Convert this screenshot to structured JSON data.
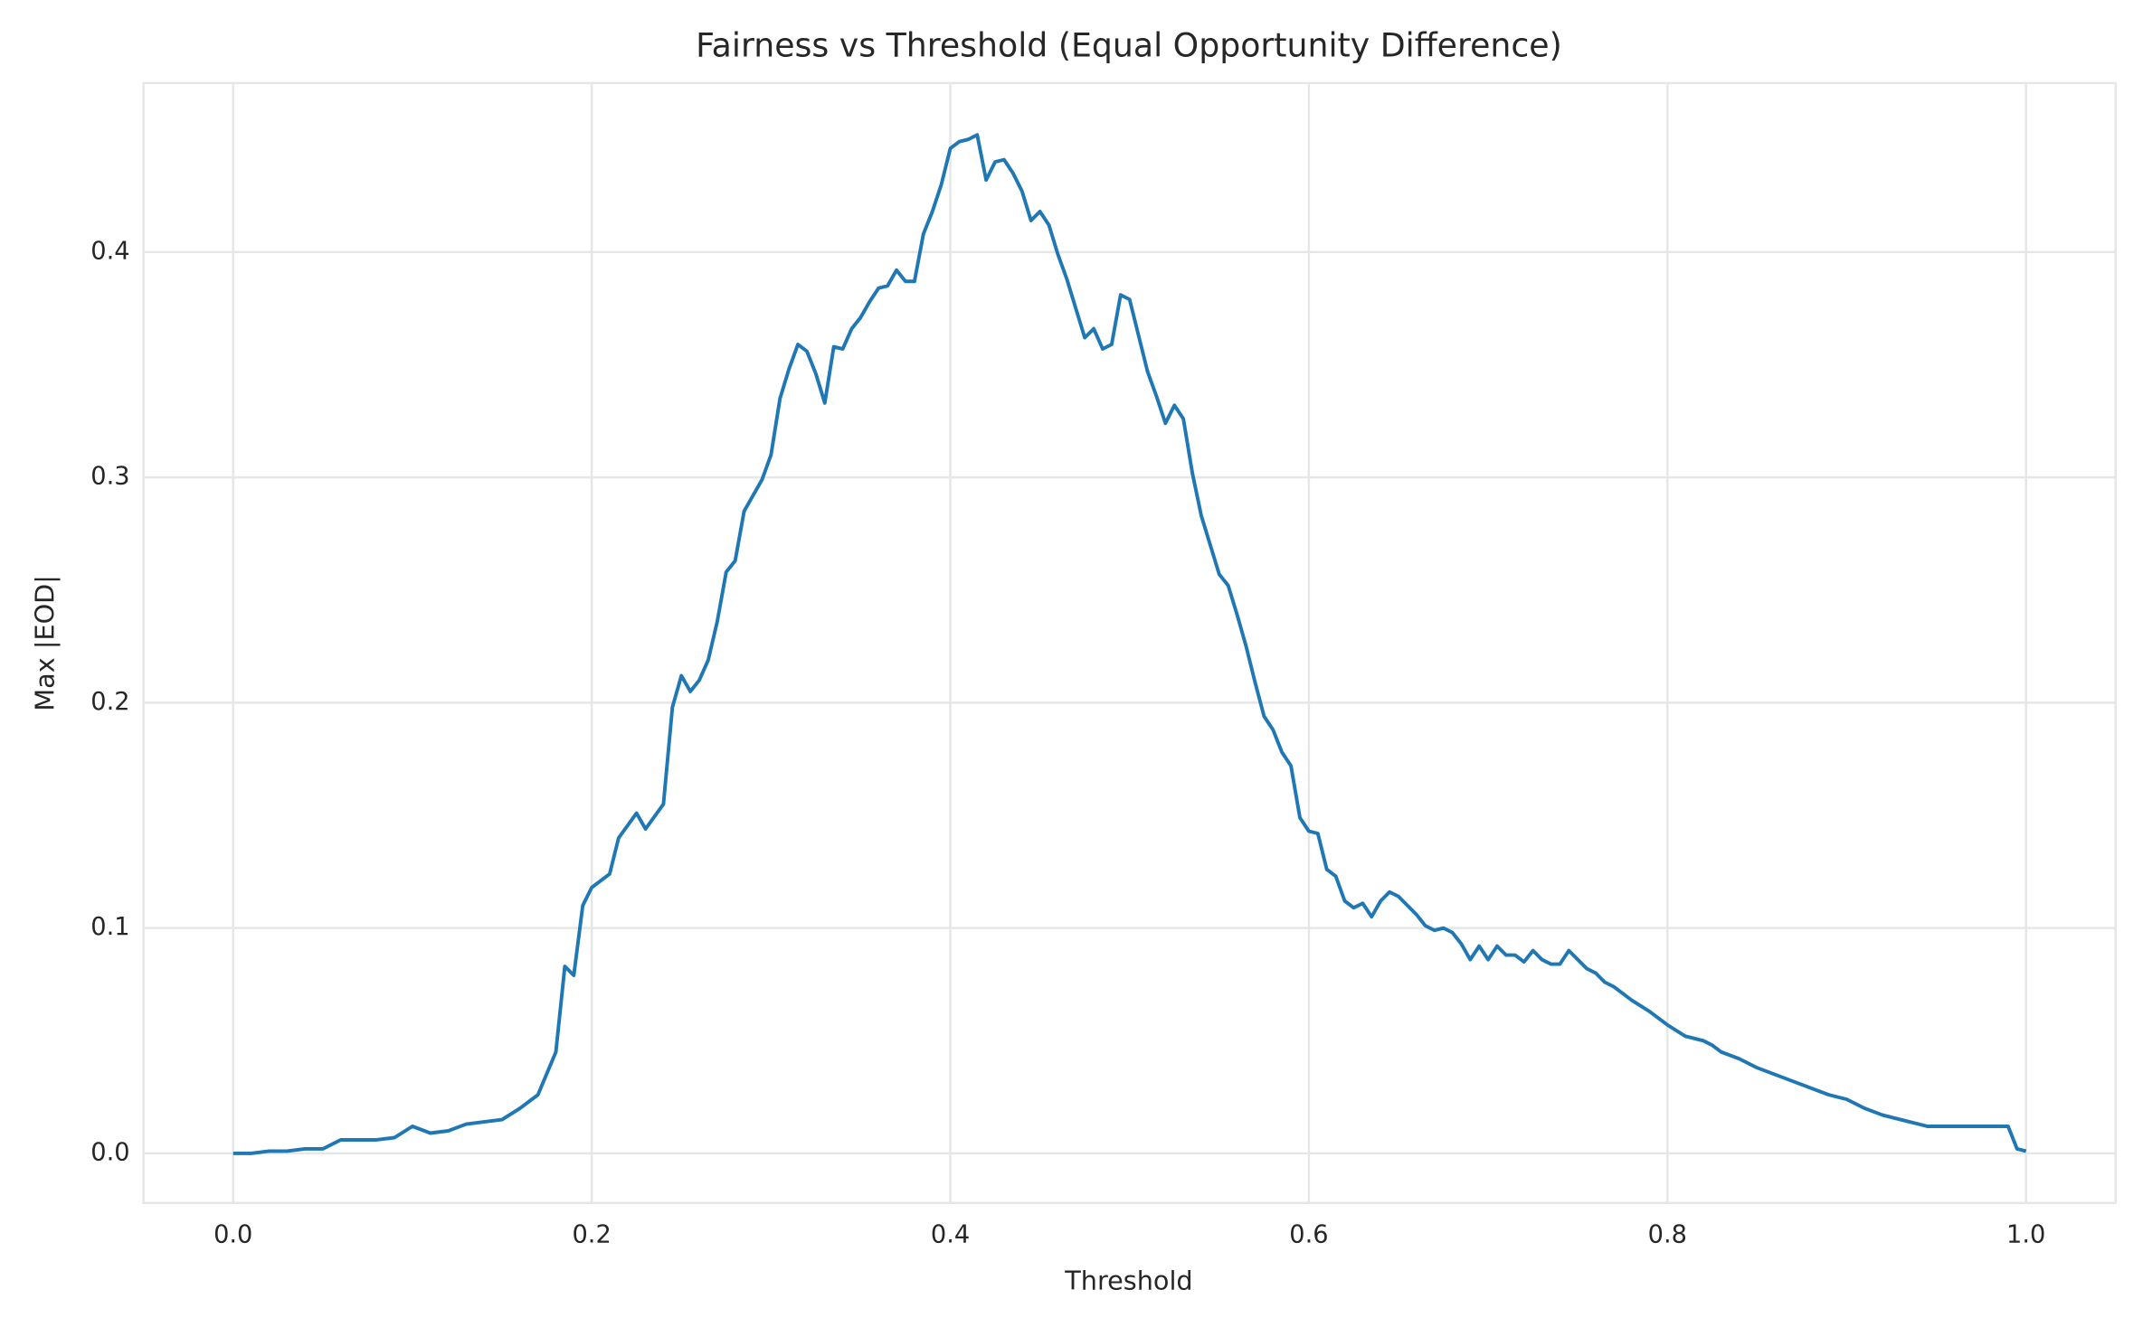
{
  "chart_data": {
    "type": "line",
    "title": "Fairness vs Threshold (Equal Opportunity Difference)",
    "x_label": "Threshold",
    "y_label": "Max |EOD|",
    "xlim": [
      -0.05,
      1.05
    ],
    "ylim": [
      -0.022,
      0.475
    ],
    "xticks": [
      {
        "value": 0,
        "label": "0.0"
      },
      0.2,
      0.4,
      0.6,
      0.8,
      {
        "value": 1,
        "label": "1.0"
      }
    ],
    "yticks": [
      {
        "value": 0,
        "label": "0.0"
      },
      0.1,
      0.2,
      0.3,
      0.4
    ],
    "grid": true,
    "x": [
      0,
      0.01,
      0.02,
      0.03,
      0.04,
      0.05,
      0.06,
      0.07,
      0.08,
      0.09,
      0.1,
      0.11,
      0.12,
      0.13,
      0.14,
      0.15,
      0.16,
      0.17,
      0.18,
      0.185,
      0.19,
      0.195,
      0.2,
      0.21,
      0.215,
      0.225,
      0.23,
      0.24,
      0.245,
      0.25,
      0.255,
      0.26,
      0.265,
      0.27,
      0.275,
      0.28,
      0.285,
      0.29,
      0.295,
      0.3,
      0.305,
      0.31,
      0.315,
      0.32,
      0.325,
      0.33,
      0.335,
      0.34,
      0.345,
      0.35,
      0.355,
      0.36,
      0.365,
      0.37,
      0.375,
      0.38,
      0.385,
      0.39,
      0.395,
      0.4,
      0.405,
      0.41,
      0.415,
      0.42,
      0.425,
      0.43,
      0.435,
      0.44,
      0.445,
      0.45,
      0.455,
      0.46,
      0.465,
      0.47,
      0.475,
      0.48,
      0.485,
      0.49,
      0.495,
      0.5,
      0.505,
      0.51,
      0.515,
      0.52,
      0.525,
      0.53,
      0.535,
      0.54,
      0.545,
      0.55,
      0.555,
      0.56,
      0.565,
      0.57,
      0.575,
      0.58,
      0.585,
      0.59,
      0.595,
      0.6,
      0.605,
      0.61,
      0.615,
      0.62,
      0.625,
      0.63,
      0.635,
      0.64,
      0.645,
      0.65,
      0.655,
      0.66,
      0.665,
      0.67,
      0.675,
      0.68,
      0.685,
      0.69,
      0.695,
      0.7,
      0.705,
      0.71,
      0.715,
      0.72,
      0.725,
      0.73,
      0.735,
      0.74,
      0.745,
      0.75,
      0.755,
      0.76,
      0.765,
      0.77,
      0.78,
      0.79,
      0.8,
      0.81,
      0.815,
      0.82,
      0.825,
      0.83,
      0.84,
      0.85,
      0.86,
      0.87,
      0.88,
      0.89,
      0.9,
      0.91,
      0.92,
      0.93,
      0.94,
      0.945,
      0.95,
      0.96,
      0.97,
      0.98,
      0.99,
      0.995,
      1
    ],
    "series": [
      {
        "name": "Max |EOD|",
        "color": "#1f77b4",
        "values": [
          0,
          0,
          0.001,
          0.001,
          0.002,
          0.002,
          0.006,
          0.006,
          0.006,
          0.007,
          0.012,
          0.009,
          0.01,
          0.013,
          0.014,
          0.015,
          0.02,
          0.026,
          0.045,
          0.083,
          0.079,
          0.11,
          0.118,
          0.124,
          0.14,
          0.151,
          0.144,
          0.155,
          0.198,
          0.212,
          0.205,
          0.21,
          0.219,
          0.236,
          0.258,
          0.263,
          0.285,
          0.292,
          0.299,
          0.31,
          0.335,
          0.348,
          0.359,
          0.356,
          0.346,
          0.333,
          0.358,
          0.357,
          0.366,
          0.371,
          0.378,
          0.384,
          0.385,
          0.392,
          0.387,
          0.387,
          0.408,
          0.418,
          0.43,
          0.446,
          0.449,
          0.45,
          0.452,
          0.432,
          0.44,
          0.441,
          0.435,
          0.427,
          0.414,
          0.418,
          0.412,
          0.399,
          0.388,
          0.375,
          0.362,
          0.366,
          0.357,
          0.359,
          0.381,
          0.379,
          0.363,
          0.347,
          0.336,
          0.324,
          0.332,
          0.326,
          0.302,
          0.283,
          0.27,
          0.257,
          0.252,
          0.239,
          0.225,
          0.209,
          0.194,
          0.188,
          0.178,
          0.172,
          0.149,
          0.143,
          0.142,
          0.126,
          0.123,
          0.112,
          0.109,
          0.111,
          0.105,
          0.112,
          0.116,
          0.114,
          0.11,
          0.106,
          0.101,
          0.099,
          0.1,
          0.098,
          0.093,
          0.086,
          0.092,
          0.086,
          0.092,
          0.088,
          0.088,
          0.085,
          0.09,
          0.086,
          0.084,
          0.084,
          0.09,
          0.086,
          0.082,
          0.08,
          0.076,
          0.074,
          0.068,
          0.063,
          0.057,
          0.052,
          0.051,
          0.05,
          0.048,
          0.045,
          0.042,
          0.038,
          0.035,
          0.032,
          0.029,
          0.026,
          0.024,
          0.02,
          0.017,
          0.015,
          0.013,
          0.012,
          0.012,
          0.012,
          0.012,
          0.012,
          0.012,
          0.002,
          0.001
        ]
      }
    ]
  }
}
